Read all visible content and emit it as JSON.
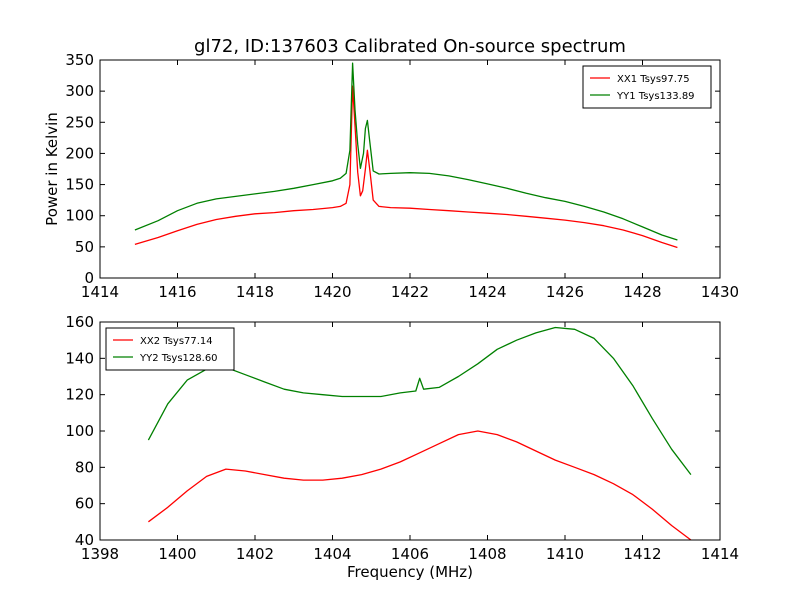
{
  "figure": {
    "title": "gl72, ID:137603 Calibrated On-source spectrum",
    "xlabel": "Frequency (MHz)"
  },
  "chart_data": [
    {
      "type": "line",
      "title": "gl72, ID:137603 Calibrated On-source spectrum",
      "xlabel": "",
      "ylabel": "Power in Kelvin",
      "xlim": [
        1414,
        1430
      ],
      "ylim": [
        0,
        350
      ],
      "xticks": [
        1414,
        1416,
        1418,
        1420,
        1422,
        1424,
        1426,
        1428,
        1430
      ],
      "yticks": [
        0,
        50,
        100,
        150,
        200,
        250,
        300,
        350
      ],
      "grid": false,
      "legend": {
        "position": "top-right"
      },
      "series": [
        {
          "name": "XX1 Tsys97.75",
          "color": "#ff0000",
          "x": [
            1414.9,
            1415.5,
            1416,
            1416.5,
            1417,
            1417.5,
            1418,
            1418.5,
            1419,
            1419.5,
            1420,
            1420.2,
            1420.35,
            1420.45,
            1420.52,
            1420.58,
            1420.65,
            1420.72,
            1420.78,
            1420.85,
            1420.9,
            1420.96,
            1421.05,
            1421.2,
            1421.5,
            1422,
            1422.5,
            1423,
            1423.5,
            1424,
            1424.5,
            1425,
            1425.5,
            1426,
            1426.5,
            1427,
            1427.5,
            1428,
            1428.5,
            1428.9
          ],
          "y": [
            54,
            65,
            76,
            86,
            94,
            99,
            103,
            105,
            108,
            110,
            113,
            115,
            120,
            150,
            308,
            245,
            170,
            132,
            140,
            175,
            205,
            175,
            125,
            115,
            113,
            112,
            110,
            108,
            106,
            104,
            102,
            99,
            96,
            93,
            89,
            84,
            77,
            68,
            57,
            49
          ]
        },
        {
          "name": "YY1 Tsys133.89",
          "color": "#008000",
          "x": [
            1414.9,
            1415.5,
            1416,
            1416.5,
            1417,
            1417.5,
            1418,
            1418.5,
            1419,
            1419.5,
            1420,
            1420.2,
            1420.35,
            1420.45,
            1420.52,
            1420.58,
            1420.65,
            1420.72,
            1420.8,
            1420.85,
            1420.9,
            1420.96,
            1421.05,
            1421.2,
            1421.5,
            1422,
            1422.5,
            1423,
            1423.5,
            1424,
            1424.5,
            1425,
            1425.5,
            1426,
            1426.5,
            1427,
            1427.5,
            1428,
            1428.5,
            1428.9
          ],
          "y": [
            77,
            92,
            108,
            120,
            127,
            131,
            135,
            139,
            144,
            150,
            156,
            160,
            168,
            205,
            345,
            270,
            215,
            176,
            200,
            240,
            253,
            220,
            172,
            167,
            168,
            169,
            168,
            164,
            158,
            151,
            144,
            136,
            129,
            123,
            115,
            106,
            95,
            82,
            69,
            61
          ]
        }
      ]
    },
    {
      "type": "line",
      "title": "",
      "xlabel": "Frequency (MHz)",
      "ylabel": "",
      "xlim": [
        1398,
        1414
      ],
      "ylim": [
        40,
        160
      ],
      "xticks": [
        1398,
        1400,
        1402,
        1404,
        1406,
        1408,
        1410,
        1412,
        1414
      ],
      "yticks": [
        40,
        60,
        80,
        100,
        120,
        140,
        160
      ],
      "grid": false,
      "legend": {
        "position": "top-left"
      },
      "series": [
        {
          "name": "XX2 Tsys77.14",
          "color": "#ff0000",
          "x": [
            1399.25,
            1399.75,
            1400.25,
            1400.75,
            1401.25,
            1401.75,
            1402.25,
            1402.75,
            1403.25,
            1403.75,
            1404.25,
            1404.75,
            1405.25,
            1405.75,
            1406.25,
            1406.75,
            1407.25,
            1407.75,
            1408.25,
            1408.75,
            1409.25,
            1409.75,
            1410.25,
            1410.75,
            1411.25,
            1411.75,
            1412.25,
            1412.75,
            1413.25
          ],
          "y": [
            50,
            58,
            67,
            75,
            79,
            78,
            76,
            74,
            73,
            73,
            74,
            76,
            79,
            83,
            88,
            93,
            98,
            100,
            98,
            94,
            89,
            84,
            80,
            76,
            71,
            65,
            57,
            48,
            40
          ]
        },
        {
          "name": "YY2 Tsys128.60",
          "color": "#008000",
          "x": [
            1399.25,
            1399.75,
            1400.25,
            1400.75,
            1401.25,
            1401.75,
            1402.25,
            1402.75,
            1403.25,
            1403.75,
            1404.25,
            1404.75,
            1405.25,
            1405.75,
            1406.15,
            1406.25,
            1406.35,
            1406.75,
            1407.25,
            1407.75,
            1408.25,
            1408.75,
            1409.25,
            1409.75,
            1410.25,
            1410.75,
            1411.25,
            1411.75,
            1412.25,
            1412.75,
            1413.25
          ],
          "y": [
            95,
            115,
            128,
            134,
            135,
            131,
            127,
            123,
            121,
            120,
            119,
            119,
            119,
            121,
            122,
            129,
            123,
            124,
            130,
            137,
            145,
            150,
            154,
            157,
            156,
            151,
            140,
            125,
            107,
            90,
            76
          ]
        }
      ]
    }
  ]
}
